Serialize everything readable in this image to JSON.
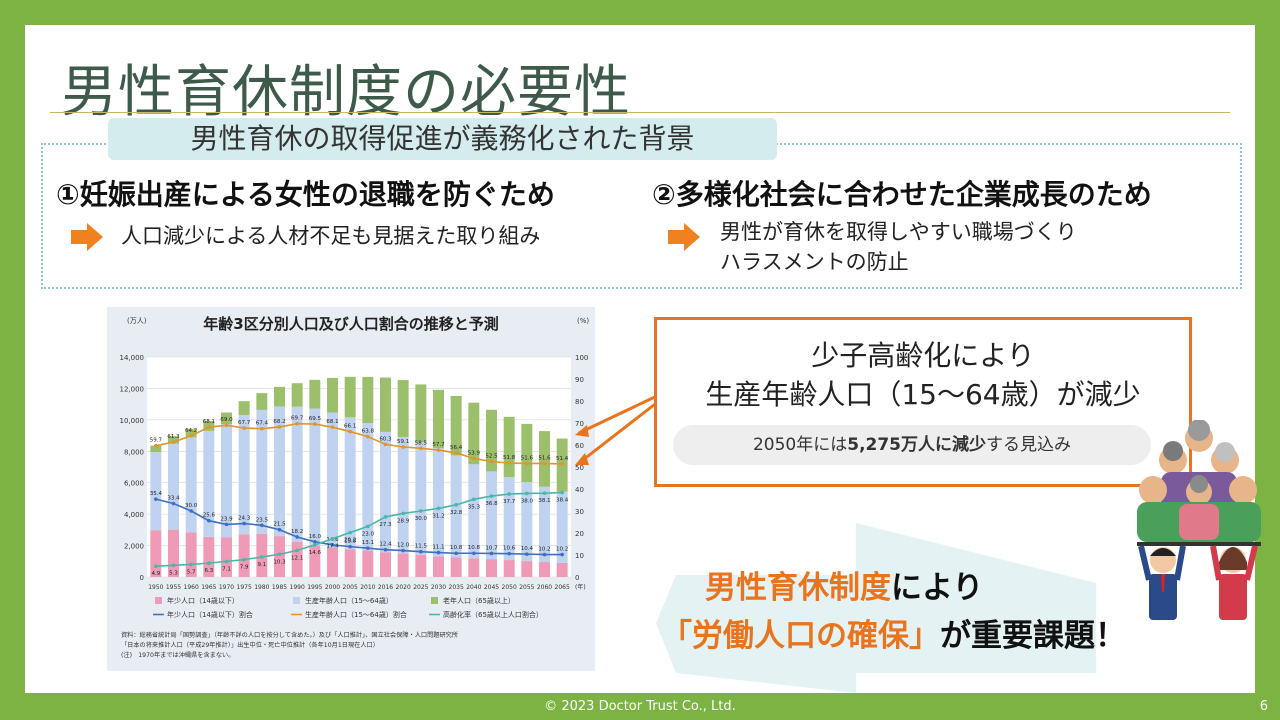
{
  "slide": {
    "title": "男性育休制度の必要性",
    "subtitle": "男性育休の取得促進が義務化された背景",
    "reason1": {
      "heading": "①妊娠出産による女性の退職を防ぐため",
      "bullet": "人口減少による人材不足も見据えた取り組み"
    },
    "reason2": {
      "heading": "②多様化社会に合わせた企業成長のため",
      "bullet1": "男性が育休を取得しやすい職場づくり",
      "bullet2": "ハラスメントの防止"
    },
    "callout": {
      "line1": "少子高齢化により",
      "line2": "生産年齢人口（15～64歳）が減少",
      "pill_pre": "2050年には",
      "pill_bold": "5,275万人に減少",
      "pill_post": "する見込み"
    },
    "message": {
      "line1_a": "男性育休制度",
      "line1_b": "により",
      "line2_a": "「労働人口の確保」",
      "line2_b": "が重要課題！"
    },
    "footer": "© 2023 Doctor Trust Co., Ltd.",
    "page": "6",
    "colors": {
      "accent": "#e8741e",
      "frame": "#7cb342",
      "title": "#3d5a4a"
    }
  },
  "chart_data": {
    "type": "bar",
    "title": "年齢3区分別人口及び人口割合の推移と予測",
    "ylabel_left": "(万人)",
    "ylabel_right": "(%)",
    "ylim": [
      0,
      14000
    ],
    "ylim_right": [
      0,
      100
    ],
    "yticks_left": [
      "14,000",
      "12,000",
      "10,000",
      "8,000",
      "6,000",
      "4,000",
      "2,000",
      "0"
    ],
    "yticks_right": [
      "100",
      "90",
      "80",
      "70",
      "60",
      "50",
      "40",
      "30",
      "20",
      "10",
      "0"
    ],
    "categories": [
      "1950",
      "1955",
      "1960",
      "1965",
      "1970",
      "1975",
      "1980",
      "1985",
      "1990",
      "1995",
      "2000",
      "2005",
      "2010",
      "2016",
      "2020",
      "2025",
      "2030",
      "2035",
      "2040",
      "2045",
      "2050",
      "2055",
      "2060",
      "2065"
    ],
    "series": [
      {
        "name": "年少人口（14歳以下）",
        "values": [
          2979,
          3012,
          2843,
          2553,
          2515,
          2722,
          2751,
          2603,
          2249,
          2001,
          1847,
          1752,
          1684,
          1578,
          1507,
          1407,
          1321,
          1246,
          1194,
          1138,
          1077,
          1012,
          951,
          898
        ]
      },
      {
        "name": "生産年齢人口（15～64歳）",
        "values": [
          4966,
          5473,
          6047,
          6744,
          7212,
          7581,
          7883,
          8251,
          8590,
          8716,
          8622,
          8409,
          8103,
          7656,
          7406,
          7170,
          6875,
          6494,
          5978,
          5584,
          5275,
          5028,
          4793,
          4529
        ]
      },
      {
        "name": "老年人口（65歳以上）",
        "values": [
          416,
          479,
          540,
          624,
          739,
          887,
          1065,
          1247,
          1493,
          1828,
          2204,
          2576,
          2948,
          3459,
          3619,
          3677,
          3716,
          3782,
          3921,
          3919,
          3841,
          3704,
          3540,
          3381
        ]
      }
    ],
    "ratio_lines": [
      {
        "name": "年少人口（14歳以下）割合",
        "values": [
          35.4,
          33.4,
          30.0,
          25.6,
          23.9,
          24.3,
          23.5,
          21.5,
          18.2,
          16.0,
          14.6,
          13.8,
          13.1,
          12.4,
          12.0,
          11.5,
          11.1,
          10.8,
          10.8,
          10.7,
          10.6,
          10.4,
          10.2,
          10.2
        ]
      },
      {
        "name": "生産年齢人口（15～64歳）割合",
        "values": [
          59.7,
          61.3,
          64.2,
          68.1,
          69.0,
          67.7,
          67.4,
          68.2,
          69.7,
          69.5,
          68.1,
          66.1,
          63.8,
          60.3,
          59.1,
          58.5,
          57.7,
          56.4,
          53.9,
          52.5,
          51.8,
          51.6,
          51.6,
          51.4
        ]
      },
      {
        "name": "高齢化率（65歳以上人口割合）",
        "values": [
          4.9,
          5.3,
          5.7,
          6.3,
          7.1,
          7.9,
          9.1,
          10.3,
          12.1,
          14.6,
          17.4,
          20.2,
          23.0,
          27.3,
          28.9,
          30.0,
          31.2,
          32.8,
          35.3,
          36.8,
          37.7,
          38.0,
          38.1,
          38.4
        ]
      }
    ],
    "legend": [
      "年少人口（14歳以下）",
      "生産年齢人口（15～64歳）",
      "老年人口（65歳以上）",
      "年少人口（14歳以下）割合",
      "生産年齢人口（15～64歳）割合",
      "高齢化率（65歳以上人口割合）"
    ],
    "source": [
      "資料：総務省統計局「国勢調査」（年齢不詳の人口を按分して含めた。）及び「人口推計」、国立社会保障・人口問題研究所",
      "「日本の将来推計人口（平成29年推計）」出生中位・死亡中位推計（各年10月1日現在人口）",
      "(注)　1970年までは沖縄県を含まない。"
    ],
    "x_unit": "(年)"
  }
}
